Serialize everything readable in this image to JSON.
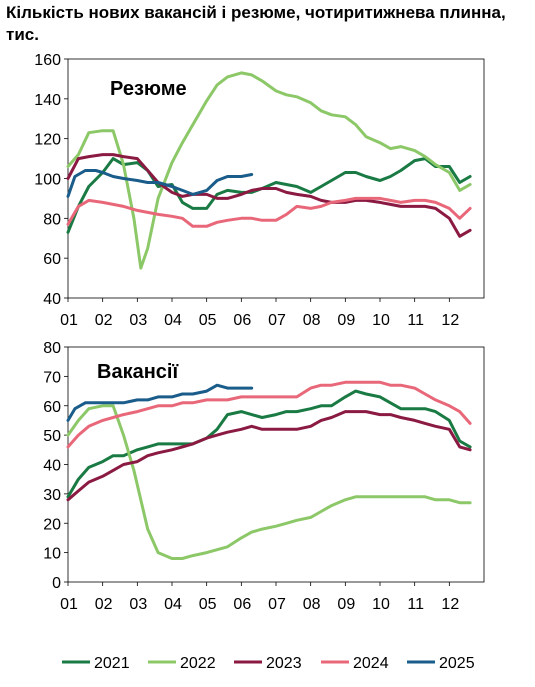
{
  "title": "Кількість нових вакансій і резюме, чотиритижнева плинна, тис.",
  "colors": {
    "2021": "#1a7a44",
    "2022": "#8cc868",
    "2023": "#8b1a42",
    "2024": "#e8687a",
    "2025": "#1a5c8a"
  },
  "chart_data": [
    {
      "type": "line",
      "title": "Резюме",
      "ylim": [
        40,
        160
      ],
      "yticks": [
        40,
        60,
        80,
        100,
        120,
        140,
        160
      ],
      "xlim": [
        1,
        13
      ],
      "xticks": [
        "01",
        "02",
        "03",
        "04",
        "05",
        "06",
        "07",
        "08",
        "09",
        "10",
        "11",
        "12"
      ],
      "series": [
        {
          "name": "2021",
          "x": [
            1.0,
            1.3,
            1.6,
            2.0,
            2.3,
            2.6,
            3.0,
            3.3,
            3.6,
            4.0,
            4.3,
            4.6,
            5.0,
            5.3,
            5.6,
            6.0,
            6.3,
            6.6,
            7.0,
            7.3,
            7.6,
            8.0,
            8.3,
            8.6,
            9.0,
            9.3,
            9.6,
            10.0,
            10.3,
            10.6,
            11.0,
            11.3,
            11.6,
            12.0,
            12.3,
            12.6
          ],
          "y": [
            73,
            86,
            96,
            103,
            110,
            107,
            108,
            104,
            96,
            97,
            88,
            85,
            85,
            92,
            94,
            93,
            93,
            95,
            98,
            97,
            96,
            93,
            96,
            99,
            103,
            103,
            101,
            99,
            101,
            104,
            109,
            110,
            106,
            106,
            98,
            101
          ]
        },
        {
          "name": "2022",
          "x": [
            1.0,
            1.3,
            1.6,
            2.0,
            2.3,
            2.6,
            2.9,
            3.1,
            3.3,
            3.6,
            4.0,
            4.3,
            4.6,
            5.0,
            5.3,
            5.6,
            6.0,
            6.3,
            6.6,
            7.0,
            7.3,
            7.6,
            8.0,
            8.3,
            8.6,
            9.0,
            9.3,
            9.6,
            10.0,
            10.3,
            10.6,
            11.0,
            11.3,
            11.6,
            12.0,
            12.3,
            12.6
          ],
          "y": [
            106,
            112,
            123,
            124,
            124,
            107,
            80,
            55,
            65,
            90,
            108,
            118,
            127,
            139,
            147,
            151,
            153,
            152,
            149,
            144,
            142,
            141,
            138,
            134,
            132,
            131,
            127,
            121,
            118,
            115,
            116,
            114,
            111,
            107,
            103,
            94,
            97
          ]
        },
        {
          "name": "2023",
          "x": [
            1.0,
            1.3,
            1.6,
            2.0,
            2.3,
            2.6,
            3.0,
            3.3,
            3.6,
            4.0,
            4.3,
            4.6,
            5.0,
            5.3,
            5.6,
            6.0,
            6.3,
            6.6,
            7.0,
            7.3,
            7.6,
            8.0,
            8.3,
            8.6,
            9.0,
            9.3,
            9.6,
            10.0,
            10.3,
            10.6,
            11.0,
            11.3,
            11.6,
            12.0,
            12.3,
            12.6
          ],
          "y": [
            100,
            110,
            111,
            112,
            112,
            111,
            110,
            104,
            98,
            93,
            91,
            92,
            92,
            90,
            90,
            92,
            94,
            95,
            95,
            93,
            92,
            91,
            89,
            88,
            88,
            89,
            89,
            88,
            87,
            86,
            86,
            86,
            85,
            80,
            71,
            74
          ]
        },
        {
          "name": "2024",
          "x": [
            1.0,
            1.3,
            1.6,
            2.0,
            2.3,
            2.6,
            3.0,
            3.3,
            3.6,
            4.0,
            4.3,
            4.6,
            5.0,
            5.3,
            5.6,
            6.0,
            6.3,
            6.6,
            7.0,
            7.3,
            7.6,
            8.0,
            8.3,
            8.6,
            9.0,
            9.3,
            9.6,
            10.0,
            10.3,
            10.6,
            11.0,
            11.3,
            11.6,
            12.0,
            12.3,
            12.6
          ],
          "y": [
            77,
            86,
            89,
            88,
            87,
            86,
            84,
            83,
            82,
            81,
            80,
            76,
            76,
            78,
            79,
            80,
            80,
            79,
            79,
            82,
            86,
            85,
            86,
            88,
            89,
            90,
            90,
            90,
            89,
            88,
            89,
            89,
            88,
            85,
            80,
            85
          ]
        },
        {
          "name": "2025",
          "x": [
            1.0,
            1.2,
            1.5,
            1.8,
            2.0,
            2.3,
            2.6,
            3.0,
            3.3,
            3.6,
            4.0,
            4.3,
            4.6,
            5.0,
            5.3,
            5.6,
            6.0,
            6.3
          ],
          "y": [
            91,
            101,
            104,
            104,
            103,
            101,
            100,
            99,
            98,
            98,
            96,
            94,
            92,
            94,
            99,
            101,
            101,
            102
          ]
        }
      ]
    },
    {
      "type": "line",
      "title": "Вакансії",
      "ylim": [
        0,
        80
      ],
      "yticks": [
        0,
        10,
        20,
        30,
        40,
        50,
        60,
        70,
        80
      ],
      "xlim": [
        1,
        13
      ],
      "xticks": [
        "01",
        "02",
        "03",
        "04",
        "05",
        "06",
        "07",
        "08",
        "09",
        "10",
        "11",
        "12"
      ],
      "series": [
        {
          "name": "2021",
          "x": [
            1.0,
            1.3,
            1.6,
            2.0,
            2.3,
            2.6,
            3.0,
            3.3,
            3.6,
            4.0,
            4.3,
            4.6,
            5.0,
            5.3,
            5.6,
            6.0,
            6.3,
            6.6,
            7.0,
            7.3,
            7.6,
            8.0,
            8.3,
            8.6,
            9.0,
            9.3,
            9.6,
            10.0,
            10.3,
            10.6,
            11.0,
            11.3,
            11.6,
            12.0,
            12.3,
            12.6
          ],
          "y": [
            29,
            35,
            39,
            41,
            43,
            43,
            45,
            46,
            47,
            47,
            47,
            47,
            49,
            52,
            57,
            58,
            57,
            56,
            57,
            58,
            58,
            59,
            60,
            60,
            63,
            65,
            64,
            63,
            61,
            59,
            59,
            59,
            58,
            55,
            48,
            46
          ]
        },
        {
          "name": "2022",
          "x": [
            1.0,
            1.3,
            1.6,
            2.0,
            2.3,
            2.6,
            2.9,
            3.1,
            3.3,
            3.6,
            4.0,
            4.3,
            4.6,
            5.0,
            5.3,
            5.6,
            6.0,
            6.3,
            6.6,
            7.0,
            7.3,
            7.6,
            8.0,
            8.3,
            8.6,
            9.0,
            9.3,
            9.6,
            10.0,
            10.3,
            10.6,
            11.0,
            11.3,
            11.6,
            12.0,
            12.3,
            12.6
          ],
          "y": [
            50,
            55,
            59,
            60,
            60,
            50,
            38,
            28,
            18,
            10,
            8,
            8,
            9,
            10,
            11,
            12,
            15,
            17,
            18,
            19,
            20,
            21,
            22,
            24,
            26,
            28,
            29,
            29,
            29,
            29,
            29,
            29,
            29,
            28,
            28,
            27,
            27
          ]
        },
        {
          "name": "2023",
          "x": [
            1.0,
            1.3,
            1.6,
            2.0,
            2.3,
            2.6,
            3.0,
            3.3,
            3.6,
            4.0,
            4.3,
            4.6,
            5.0,
            5.3,
            5.6,
            6.0,
            6.3,
            6.6,
            7.0,
            7.3,
            7.6,
            8.0,
            8.3,
            8.6,
            9.0,
            9.3,
            9.6,
            10.0,
            10.3,
            10.6,
            11.0,
            11.3,
            11.6,
            12.0,
            12.3,
            12.6
          ],
          "y": [
            28,
            31,
            34,
            36,
            38,
            40,
            41,
            43,
            44,
            45,
            46,
            47,
            49,
            50,
            51,
            52,
            53,
            52,
            52,
            52,
            52,
            53,
            55,
            56,
            58,
            58,
            58,
            57,
            57,
            56,
            55,
            54,
            53,
            52,
            46,
            45
          ]
        },
        {
          "name": "2024",
          "x": [
            1.0,
            1.3,
            1.6,
            2.0,
            2.3,
            2.6,
            3.0,
            3.3,
            3.6,
            4.0,
            4.3,
            4.6,
            5.0,
            5.3,
            5.6,
            6.0,
            6.3,
            6.6,
            7.0,
            7.3,
            7.6,
            8.0,
            8.3,
            8.6,
            9.0,
            9.3,
            9.6,
            10.0,
            10.3,
            10.6,
            11.0,
            11.3,
            11.6,
            12.0,
            12.3,
            12.6
          ],
          "y": [
            46,
            50,
            53,
            55,
            56,
            57,
            58,
            59,
            60,
            60,
            61,
            61,
            62,
            62,
            62,
            63,
            63,
            63,
            63,
            63,
            63,
            66,
            67,
            67,
            68,
            68,
            68,
            68,
            67,
            67,
            66,
            64,
            62,
            60,
            58,
            54
          ]
        },
        {
          "name": "2025",
          "x": [
            1.0,
            1.2,
            1.5,
            1.8,
            2.0,
            2.3,
            2.6,
            3.0,
            3.3,
            3.6,
            4.0,
            4.3,
            4.6,
            5.0,
            5.3,
            5.6,
            6.0,
            6.3
          ],
          "y": [
            55,
            59,
            61,
            61,
            61,
            61,
            61,
            62,
            62,
            63,
            63,
            64,
            64,
            65,
            67,
            66,
            66,
            66
          ]
        }
      ]
    }
  ]
}
